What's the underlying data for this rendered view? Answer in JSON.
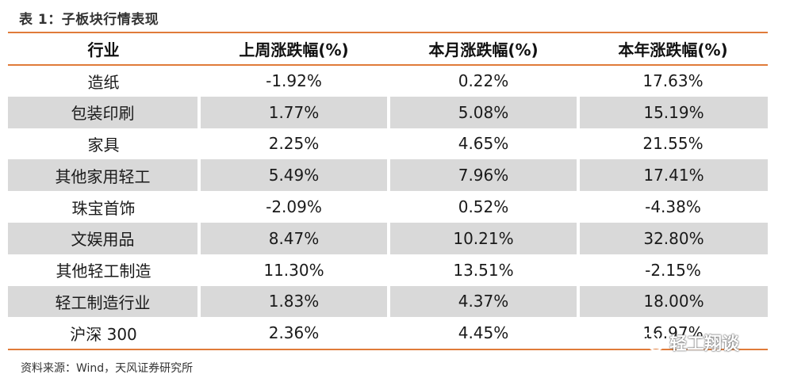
{
  "caption": "表 1：子板块行情表现",
  "table": {
    "headers": [
      "行业",
      "上周涨跌幅(%)",
      "本月涨跌幅(%)",
      "本年涨跌幅(%)"
    ],
    "rows": [
      [
        "造纸",
        "-1.92%",
        "0.22%",
        "17.63%"
      ],
      [
        "包装印刷",
        "1.77%",
        "5.08%",
        "15.19%"
      ],
      [
        "家具",
        "2.25%",
        "4.65%",
        "21.55%"
      ],
      [
        "其他家用轻工",
        "5.49%",
        "7.96%",
        "17.41%"
      ],
      [
        "珠宝首饰",
        "-2.09%",
        "0.52%",
        "-4.38%"
      ],
      [
        "文娱用品",
        "8.47%",
        "10.21%",
        "32.80%"
      ],
      [
        "其他轻工制造",
        "11.30%",
        "13.51%",
        "-2.15%"
      ],
      [
        "轻工制造行业",
        "1.83%",
        "4.37%",
        "18.00%"
      ],
      [
        "沪深 300",
        "2.36%",
        "4.45%",
        "16.97%"
      ]
    ]
  },
  "source": "资料来源：Wind，天风证券研究所",
  "watermark": {
    "icon": "wechat-icon",
    "text": "轻工翔谈"
  },
  "colors": {
    "accent_rule": "#e07b39",
    "row_shade": "#d9d9d9"
  }
}
